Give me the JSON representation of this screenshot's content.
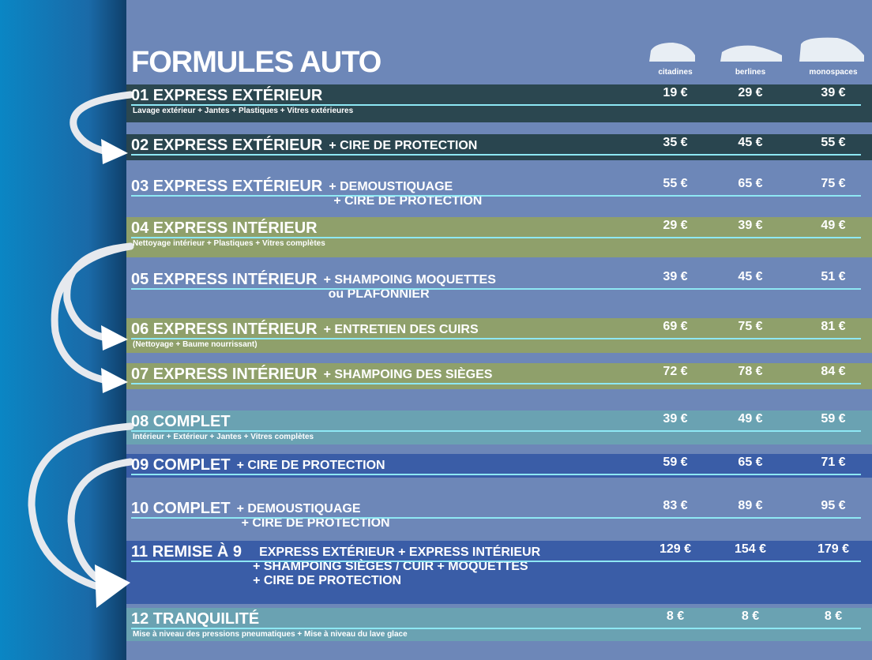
{
  "header": {
    "title": "FORMULES AUTO",
    "columns": [
      "citadines",
      "berlines",
      "monospaces"
    ]
  },
  "rows": [
    {
      "label": "01 EXPRESS EXTÉRIEUR",
      "details": [],
      "note": "Lavage extérieur + Jantes + Plastiques + Vitres extérieures",
      "prices": [
        "19 €",
        "29 €",
        "39 €"
      ],
      "band": "#2b4750"
    },
    {
      "label": "02 EXPRESS EXTÉRIEUR",
      "details": [
        "+ CIRE DE PROTECTION"
      ],
      "prices": [
        "35 €",
        "45 €",
        "55 €"
      ],
      "band": "#29454f"
    },
    {
      "label": "03 EXPRESS EXTÉRIEUR",
      "details": [
        "+ DEMOUSTIQUAGE",
        "+ CIRE DE PROTECTION"
      ],
      "prices": [
        "55 €",
        "65 €",
        "75 €"
      ],
      "band": null
    },
    {
      "label": "04 EXPRESS INTÉRIEUR",
      "details": [],
      "note": "Nettoyage intérieur + Plastiques + Vitres complètes",
      "prices": [
        "29 €",
        "39 €",
        "49 €"
      ],
      "band": "#8fa06b"
    },
    {
      "label": "05 EXPRESS INTÉRIEUR",
      "details": [
        "+ SHAMPOING MOQUETTES",
        "ou PLAFONNIER"
      ],
      "prices": [
        "39 €",
        "45 €",
        "51 €"
      ],
      "band": null
    },
    {
      "label": "06 EXPRESS INTÉRIEUR",
      "details": [
        "+ ENTRETIEN DES CUIRS"
      ],
      "note": "(Nettoyage + Baume nourrissant)",
      "prices": [
        "69 €",
        "75 €",
        "81 €"
      ],
      "band": "#8fa06b"
    },
    {
      "label": "07 EXPRESS INTÉRIEUR",
      "details": [
        "+ SHAMPOING DES SIÈGES"
      ],
      "prices": [
        "72 €",
        "78 €",
        "84 €"
      ],
      "band": "#8fa06b"
    },
    {
      "label": "08 COMPLET",
      "details": [],
      "note": "Intérieur + Extérieur + Jantes + Vitres complètes",
      "prices": [
        "39 €",
        "49 €",
        "59 €"
      ],
      "band": "#6aa2b2"
    },
    {
      "label": "09 COMPLET",
      "details": [
        "+ CIRE DE PROTECTION"
      ],
      "prices": [
        "59 €",
        "65 €",
        "71 €"
      ],
      "band": "#3a5da7"
    },
    {
      "label": "10 COMPLET",
      "details": [
        "+ DEMOUSTIQUAGE",
        "+ CIRE DE PROTECTION"
      ],
      "prices": [
        "83 €",
        "89 €",
        "95 €"
      ],
      "band": null
    },
    {
      "label": "11 REMISE À 9",
      "details": [
        "EXPRESS EXTÉRIEUR + EXPRESS INTÉRIEUR",
        "+ SHAMPOING SIÈGES / CUIR + MOQUETTES",
        "+ CIRE DE PROTECTION"
      ],
      "prices": [
        "129 €",
        "154 €",
        "179 €"
      ],
      "band": "#3a5da7"
    },
    {
      "label": "12 TRANQUILITÉ",
      "details": [],
      "note": "Mise à niveau des pressions pneumatiques + Mise à niveau du lave glace",
      "prices": [
        "8 €",
        "8 €",
        "8 €"
      ],
      "band": "#6aa2b2"
    }
  ]
}
